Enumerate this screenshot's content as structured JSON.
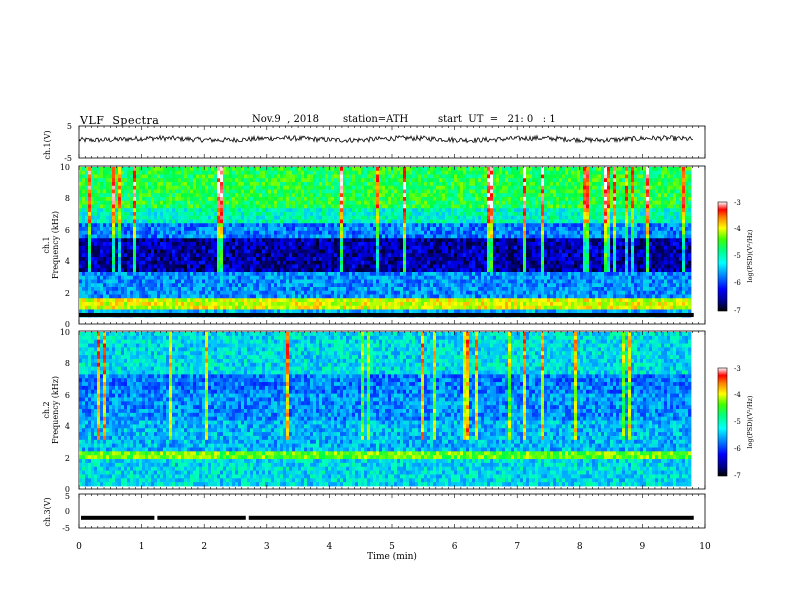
{
  "header": {
    "title": "VLF  Spectra",
    "date": "Nov.9  , 2018",
    "station": "station=ATH",
    "start": "start  UT  =   21: 0   : 1"
  },
  "chart_data": [
    {
      "type": "line",
      "panel": "ch1-waveform",
      "ylabel": "ch.1(V)",
      "ylim": [
        -5,
        5
      ],
      "yticks": [
        "5",
        "-5"
      ],
      "baseline": 0.9,
      "description_values": {
        "mean": 0.9,
        "min": -0.6,
        "max": 2.2
      }
    },
    {
      "type": "heatmap",
      "panel": "ch1-spectrogram",
      "ylabel_top": "ch.1",
      "ylabel": "Frequency  (kHz)",
      "ylim": [
        0,
        10
      ],
      "yticks": [
        "0",
        "2",
        "4",
        "6",
        "8",
        "10"
      ],
      "colorbar": {
        "label": "log(PSD)(V²/Hz)",
        "range": [
          -7,
          -3
        ],
        "ticks": [
          "-3",
          "-4",
          "-5",
          "-6",
          "-7"
        ]
      }
    },
    {
      "type": "heatmap",
      "panel": "ch2-spectrogram",
      "ylabel_top": "ch.2",
      "ylabel": "Frequency  (kHz)",
      "ylim": [
        0,
        10
      ],
      "yticks": [
        "0",
        "2",
        "4",
        "6",
        "8",
        "10"
      ],
      "colorbar": {
        "label": "log(PSD)(V²/Hz)",
        "range": [
          -7,
          -3
        ],
        "ticks": [
          "-3",
          "-4",
          "-5",
          "-6",
          "-7"
        ]
      }
    },
    {
      "type": "line",
      "panel": "ch3-waveform",
      "ylabel": "ch.3(V)",
      "ylim": [
        -5,
        5
      ],
      "yticks": [
        "5",
        "0",
        "-5"
      ],
      "baseline": -2.0,
      "gaps_min": [
        1.22,
        2.68
      ]
    }
  ],
  "xaxis": {
    "label": "Time  (min)",
    "xlim": [
      0,
      10
    ],
    "ticks": [
      "0",
      "1",
      "2",
      "3",
      "4",
      "5",
      "6",
      "7",
      "8",
      "9",
      "10"
    ],
    "data_end": 9.82
  },
  "colormap": [
    "#000000",
    "#00007f",
    "#0000ff",
    "#0060ff",
    "#00c0ff",
    "#00ffc0",
    "#00ff40",
    "#80ff00",
    "#ffff00",
    "#ff8000",
    "#ff0000",
    "#ffffff"
  ]
}
